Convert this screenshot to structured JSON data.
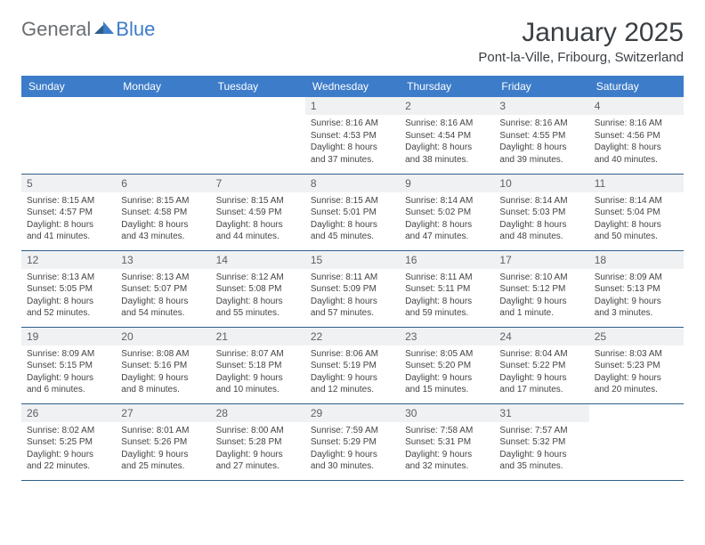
{
  "brand": {
    "part1": "General",
    "part2": "Blue"
  },
  "title": {
    "month": "January 2025",
    "location": "Pont-la-Ville, Fribourg, Switzerland"
  },
  "colors": {
    "accent": "#3d7cc9",
    "header_text": "#ffffff",
    "divider": "#2e5f8a",
    "daynum_bg": "#f0f1f2",
    "body_text": "#444444",
    "title_text": "#3a3f44",
    "logo_gray": "#6b6f73",
    "background": "#ffffff"
  },
  "calendar": {
    "columns": [
      "Sunday",
      "Monday",
      "Tuesday",
      "Wednesday",
      "Thursday",
      "Friday",
      "Saturday"
    ],
    "first_weekday_index": 3,
    "num_days": 31,
    "days": {
      "1": {
        "sunrise": "8:16 AM",
        "sunset": "4:53 PM",
        "daylight": "8 hours and 37 minutes."
      },
      "2": {
        "sunrise": "8:16 AM",
        "sunset": "4:54 PM",
        "daylight": "8 hours and 38 minutes."
      },
      "3": {
        "sunrise": "8:16 AM",
        "sunset": "4:55 PM",
        "daylight": "8 hours and 39 minutes."
      },
      "4": {
        "sunrise": "8:16 AM",
        "sunset": "4:56 PM",
        "daylight": "8 hours and 40 minutes."
      },
      "5": {
        "sunrise": "8:15 AM",
        "sunset": "4:57 PM",
        "daylight": "8 hours and 41 minutes."
      },
      "6": {
        "sunrise": "8:15 AM",
        "sunset": "4:58 PM",
        "daylight": "8 hours and 43 minutes."
      },
      "7": {
        "sunrise": "8:15 AM",
        "sunset": "4:59 PM",
        "daylight": "8 hours and 44 minutes."
      },
      "8": {
        "sunrise": "8:15 AM",
        "sunset": "5:01 PM",
        "daylight": "8 hours and 45 minutes."
      },
      "9": {
        "sunrise": "8:14 AM",
        "sunset": "5:02 PM",
        "daylight": "8 hours and 47 minutes."
      },
      "10": {
        "sunrise": "8:14 AM",
        "sunset": "5:03 PM",
        "daylight": "8 hours and 48 minutes."
      },
      "11": {
        "sunrise": "8:14 AM",
        "sunset": "5:04 PM",
        "daylight": "8 hours and 50 minutes."
      },
      "12": {
        "sunrise": "8:13 AM",
        "sunset": "5:05 PM",
        "daylight": "8 hours and 52 minutes."
      },
      "13": {
        "sunrise": "8:13 AM",
        "sunset": "5:07 PM",
        "daylight": "8 hours and 54 minutes."
      },
      "14": {
        "sunrise": "8:12 AM",
        "sunset": "5:08 PM",
        "daylight": "8 hours and 55 minutes."
      },
      "15": {
        "sunrise": "8:11 AM",
        "sunset": "5:09 PM",
        "daylight": "8 hours and 57 minutes."
      },
      "16": {
        "sunrise": "8:11 AM",
        "sunset": "5:11 PM",
        "daylight": "8 hours and 59 minutes."
      },
      "17": {
        "sunrise": "8:10 AM",
        "sunset": "5:12 PM",
        "daylight": "9 hours and 1 minute."
      },
      "18": {
        "sunrise": "8:09 AM",
        "sunset": "5:13 PM",
        "daylight": "9 hours and 3 minutes."
      },
      "19": {
        "sunrise": "8:09 AM",
        "sunset": "5:15 PM",
        "daylight": "9 hours and 6 minutes."
      },
      "20": {
        "sunrise": "8:08 AM",
        "sunset": "5:16 PM",
        "daylight": "9 hours and 8 minutes."
      },
      "21": {
        "sunrise": "8:07 AM",
        "sunset": "5:18 PM",
        "daylight": "9 hours and 10 minutes."
      },
      "22": {
        "sunrise": "8:06 AM",
        "sunset": "5:19 PM",
        "daylight": "9 hours and 12 minutes."
      },
      "23": {
        "sunrise": "8:05 AM",
        "sunset": "5:20 PM",
        "daylight": "9 hours and 15 minutes."
      },
      "24": {
        "sunrise": "8:04 AM",
        "sunset": "5:22 PM",
        "daylight": "9 hours and 17 minutes."
      },
      "25": {
        "sunrise": "8:03 AM",
        "sunset": "5:23 PM",
        "daylight": "9 hours and 20 minutes."
      },
      "26": {
        "sunrise": "8:02 AM",
        "sunset": "5:25 PM",
        "daylight": "9 hours and 22 minutes."
      },
      "27": {
        "sunrise": "8:01 AM",
        "sunset": "5:26 PM",
        "daylight": "9 hours and 25 minutes."
      },
      "28": {
        "sunrise": "8:00 AM",
        "sunset": "5:28 PM",
        "daylight": "9 hours and 27 minutes."
      },
      "29": {
        "sunrise": "7:59 AM",
        "sunset": "5:29 PM",
        "daylight": "9 hours and 30 minutes."
      },
      "30": {
        "sunrise": "7:58 AM",
        "sunset": "5:31 PM",
        "daylight": "9 hours and 32 minutes."
      },
      "31": {
        "sunrise": "7:57 AM",
        "sunset": "5:32 PM",
        "daylight": "9 hours and 35 minutes."
      }
    },
    "labels": {
      "sunrise": "Sunrise:",
      "sunset": "Sunset:",
      "daylight": "Daylight:"
    }
  },
  "typography": {
    "title_fontsize": 30,
    "location_fontsize": 15,
    "header_fontsize": 12,
    "cell_fontsize": 10,
    "daynum_fontsize": 12,
    "logo_fontsize": 22
  }
}
